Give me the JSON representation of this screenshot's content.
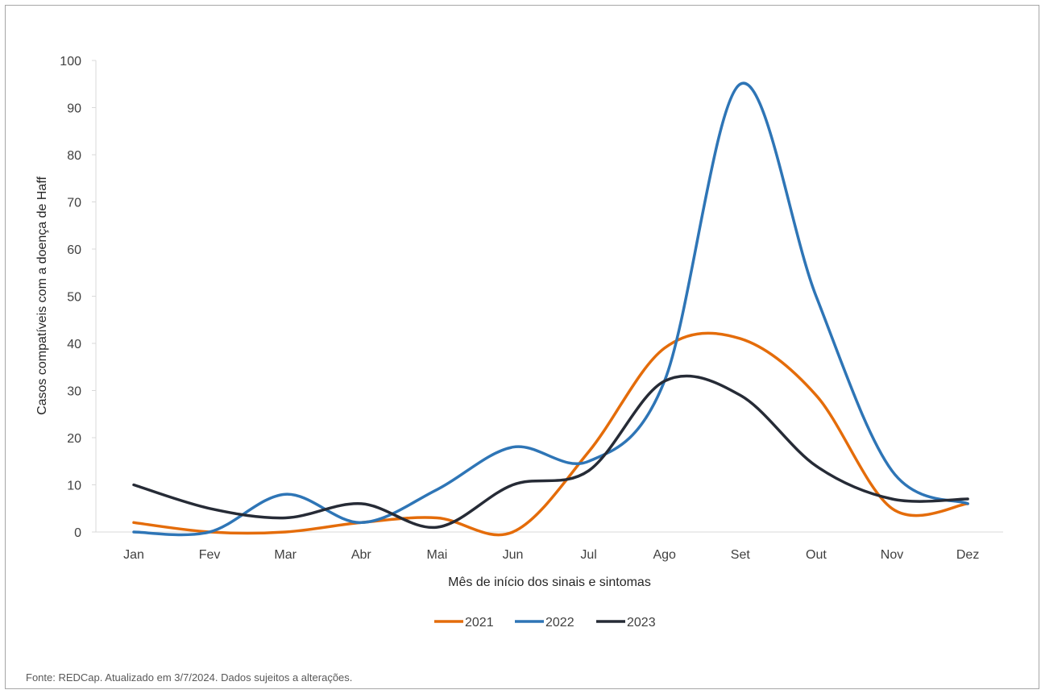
{
  "chart_data": {
    "type": "line",
    "ylabel": "Casos compatíveis com a doença de Haff",
    "xlabel": "Mês de início dos sinais e sintomas",
    "categories": [
      "Jan",
      "Fev",
      "Mar",
      "Abr",
      "Mai",
      "Jun",
      "Jul",
      "Ago",
      "Set",
      "Out",
      "Nov",
      "Dez"
    ],
    "ylim": [
      0,
      100
    ],
    "yticks": [
      0,
      10,
      20,
      30,
      40,
      50,
      60,
      70,
      80,
      90,
      100
    ],
    "smooth": true,
    "grid": false,
    "legend_position": "bottom",
    "series": [
      {
        "name": "2021",
        "color": "#e46c0a",
        "values": [
          2,
          0,
          0,
          2,
          3,
          0,
          17,
          39,
          41,
          29,
          5,
          6
        ]
      },
      {
        "name": "2022",
        "color": "#2e75b6",
        "values": [
          0,
          0,
          8,
          2,
          9,
          18,
          15,
          32,
          95,
          50,
          13,
          6
        ]
      },
      {
        "name": "2023",
        "color": "#262b36",
        "values": [
          10,
          5,
          3,
          6,
          1,
          10,
          13,
          32,
          29,
          14,
          7,
          7
        ]
      }
    ]
  },
  "source_note": "Fonte: REDCap. Atualizado em 3/7/2024. Dados sujeitos a alterações."
}
